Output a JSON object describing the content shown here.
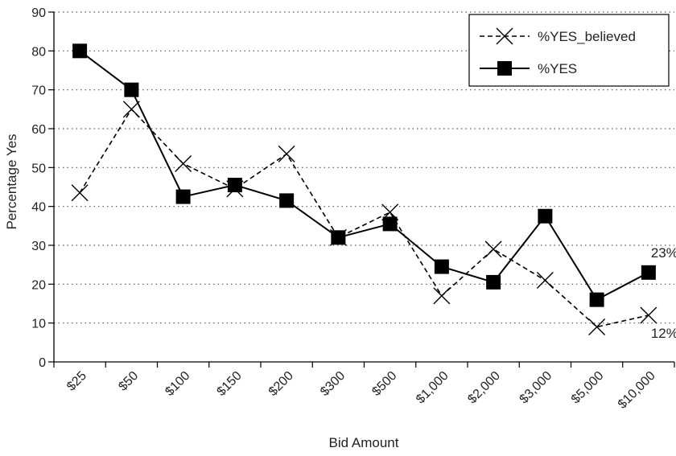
{
  "chart_data": {
    "type": "line",
    "title": "",
    "xlabel": "Bid Amount",
    "ylabel": "Percentage Yes",
    "ylim": [
      0,
      90
    ],
    "yticks": [
      0,
      10,
      20,
      30,
      40,
      50,
      60,
      70,
      80,
      90
    ],
    "grid": "horizontal dotted",
    "legend_position": "top-right",
    "categories": [
      "$25",
      "$50",
      "$100",
      "$150",
      "$200",
      "$300",
      "$500",
      "$1,000",
      "$2,000",
      "$3,000",
      "$5,000",
      "$10,000"
    ],
    "series": [
      {
        "name": "%YES_believed",
        "line_style": "dashed",
        "marker": "x",
        "color": "#000000",
        "values": [
          43.5,
          65,
          51,
          44.5,
          53.5,
          32,
          38.5,
          17,
          29,
          21,
          9,
          12
        ]
      },
      {
        "name": "%YES",
        "line_style": "solid",
        "marker": "square",
        "color": "#000000",
        "values": [
          80,
          70,
          42.5,
          45.5,
          41.5,
          32,
          35.5,
          24.5,
          20.5,
          37.5,
          16,
          23
        ]
      }
    ],
    "annotations": [
      {
        "text": "23%",
        "series": "%YES",
        "category": "$10,000"
      },
      {
        "text": "12%",
        "series": "%YES_believed",
        "category": "$10,000"
      }
    ]
  }
}
